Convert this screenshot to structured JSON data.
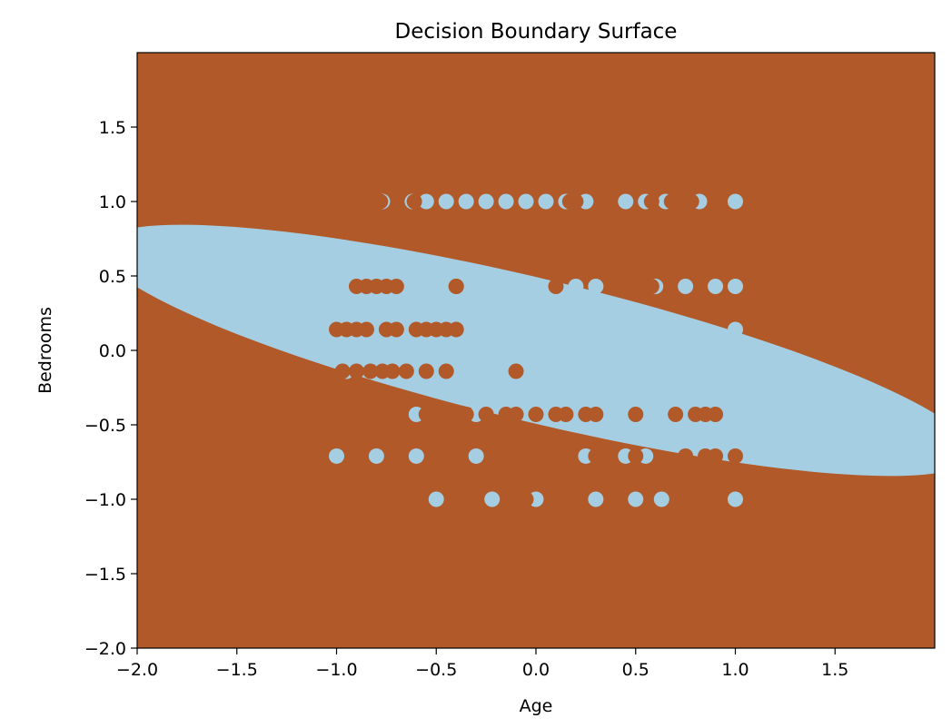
{
  "chart_data": {
    "type": "scatter",
    "title": "Decision Boundary Surface",
    "xlabel": "Age",
    "ylabel": "Bedrooms",
    "xlim": [
      -2.0,
      2.0
    ],
    "ylim": [
      -2.0,
      2.0
    ],
    "x_ticks": [
      "−2.0",
      "−1.5",
      "−1.0",
      "−0.5",
      "0.0",
      "0.5",
      "1.0",
      "1.5"
    ],
    "x_tick_values": [
      -2.0,
      -1.5,
      -1.0,
      -0.5,
      0.0,
      0.5,
      1.0,
      1.5
    ],
    "y_ticks": [
      "−2.0",
      "−1.5",
      "−1.0",
      "−0.5",
      "0.0",
      "0.5",
      "1.0",
      "1.5"
    ],
    "y_tick_values": [
      -2.0,
      -1.5,
      -1.0,
      -0.5,
      0.0,
      0.5,
      1.0,
      1.5
    ],
    "grid": false,
    "colors": {
      "class_0": "#b15928",
      "class_1": "#a6cee3"
    },
    "decision_region": {
      "shape": "ellipse",
      "inside_class": "class_1",
      "outside_class": "class_0",
      "center": [
        0.0,
        0.0
      ],
      "semi_axes": [
        2.25,
        0.48
      ],
      "rotation_deg": -13.5
    },
    "series": [
      {
        "class": "class_1",
        "points": [
          [
            -0.77,
            1.0
          ],
          [
            -0.62,
            1.0
          ],
          [
            -0.55,
            1.0
          ],
          [
            -0.45,
            1.0
          ],
          [
            -0.35,
            1.0
          ],
          [
            -0.25,
            1.0
          ],
          [
            -0.15,
            1.0
          ],
          [
            -0.05,
            1.0
          ],
          [
            0.05,
            1.0
          ],
          [
            0.15,
            1.0
          ],
          [
            0.25,
            1.0
          ],
          [
            0.45,
            1.0
          ],
          [
            0.55,
            1.0
          ],
          [
            0.65,
            1.0
          ],
          [
            0.82,
            1.0
          ],
          [
            1.0,
            1.0
          ],
          [
            0.3,
            0.43
          ],
          [
            0.6,
            0.43
          ],
          [
            0.75,
            0.43
          ],
          [
            0.9,
            0.43
          ],
          [
            1.0,
            0.43
          ],
          [
            -0.98,
            0.43
          ],
          [
            -0.6,
            0.43
          ],
          [
            -0.4,
            0.43
          ],
          [
            -0.2,
            0.43
          ],
          [
            0.0,
            0.43
          ],
          [
            0.2,
            0.43
          ],
          [
            -0.95,
            0.14
          ],
          [
            -0.7,
            0.14
          ],
          [
            -0.45,
            0.14
          ],
          [
            -0.2,
            0.14
          ],
          [
            0.1,
            0.14
          ],
          [
            0.4,
            0.14
          ],
          [
            0.7,
            0.14
          ],
          [
            1.0,
            0.14
          ],
          [
            -0.95,
            -0.14
          ],
          [
            -0.7,
            -0.14
          ],
          [
            -0.4,
            -0.14
          ],
          [
            -0.1,
            -0.14
          ],
          [
            0.2,
            -0.14
          ],
          [
            0.5,
            -0.14
          ],
          [
            0.8,
            -0.14
          ],
          [
            1.0,
            -0.14
          ],
          [
            -0.6,
            -0.43
          ],
          [
            -0.3,
            -0.43
          ],
          [
            0.0,
            -0.43
          ],
          [
            0.3,
            -0.43
          ],
          [
            0.6,
            -0.43
          ],
          [
            0.85,
            -0.43
          ],
          [
            1.0,
            -0.43
          ],
          [
            -1.0,
            -0.71
          ],
          [
            -0.8,
            -0.71
          ],
          [
            -0.6,
            -0.71
          ],
          [
            -0.3,
            -0.71
          ],
          [
            0.25,
            -0.71
          ],
          [
            0.45,
            -0.71
          ],
          [
            0.55,
            -0.71
          ],
          [
            -0.5,
            -1.0
          ],
          [
            -0.22,
            -1.0
          ],
          [
            0.0,
            -1.0
          ],
          [
            0.3,
            -1.0
          ],
          [
            0.5,
            -1.0
          ],
          [
            0.63,
            -1.0
          ],
          [
            1.0,
            -1.0
          ]
        ]
      },
      {
        "class": "class_0",
        "points": [
          [
            -0.78,
            1.0
          ],
          [
            -0.61,
            1.0
          ],
          [
            0.17,
            1.0
          ],
          [
            0.2,
            1.0
          ],
          [
            0.58,
            1.0
          ],
          [
            0.68,
            1.0
          ],
          [
            0.78,
            1.0
          ],
          [
            -0.9,
            0.43
          ],
          [
            -0.85,
            0.43
          ],
          [
            -0.8,
            0.43
          ],
          [
            -0.75,
            0.43
          ],
          [
            -0.7,
            0.43
          ],
          [
            -0.4,
            0.43
          ],
          [
            -0.4,
            0.43
          ],
          [
            0.1,
            0.43
          ],
          [
            0.55,
            0.43
          ],
          [
            0.58,
            0.43
          ],
          [
            -1.0,
            0.14
          ],
          [
            -0.95,
            0.14
          ],
          [
            -0.9,
            0.14
          ],
          [
            -0.85,
            0.14
          ],
          [
            -0.75,
            0.14
          ],
          [
            -0.7,
            0.14
          ],
          [
            -0.6,
            0.14
          ],
          [
            -0.55,
            0.14
          ],
          [
            -0.5,
            0.14
          ],
          [
            -0.45,
            0.14
          ],
          [
            -0.4,
            0.14
          ],
          [
            -0.97,
            -0.14
          ],
          [
            -0.9,
            -0.14
          ],
          [
            -0.83,
            -0.14
          ],
          [
            -0.77,
            -0.14
          ],
          [
            -0.72,
            -0.14
          ],
          [
            -0.65,
            -0.14
          ],
          [
            -0.55,
            -0.14
          ],
          [
            -0.45,
            -0.14
          ],
          [
            -0.1,
            -0.14
          ],
          [
            -0.85,
            -0.43
          ],
          [
            -0.77,
            -0.43
          ],
          [
            -0.7,
            -0.43
          ],
          [
            -0.55,
            -0.43
          ],
          [
            -0.5,
            -0.43
          ],
          [
            -0.4,
            -0.43
          ],
          [
            -0.35,
            -0.43
          ],
          [
            -0.25,
            -0.43
          ],
          [
            -0.15,
            -0.43
          ],
          [
            -0.1,
            -0.43
          ],
          [
            0.0,
            -0.43
          ],
          [
            0.1,
            -0.43
          ],
          [
            0.15,
            -0.43
          ],
          [
            0.25,
            -0.43
          ],
          [
            0.3,
            -0.43
          ],
          [
            0.5,
            -0.43
          ],
          [
            0.7,
            -0.43
          ],
          [
            0.8,
            -0.43
          ],
          [
            0.85,
            -0.43
          ],
          [
            0.9,
            -0.43
          ],
          [
            -0.15,
            -0.71
          ],
          [
            -0.1,
            -0.71
          ],
          [
            0.0,
            -0.71
          ],
          [
            0.1,
            -0.71
          ],
          [
            0.3,
            -0.71
          ],
          [
            0.5,
            -0.71
          ],
          [
            0.75,
            -0.71
          ],
          [
            0.85,
            -0.71
          ],
          [
            0.9,
            -0.71
          ],
          [
            1.0,
            -0.71
          ],
          [
            -0.6,
            -1.0
          ],
          [
            -0.38,
            -1.0
          ],
          [
            -0.1,
            -1.0
          ],
          [
            -0.05,
            -1.0
          ]
        ]
      }
    ]
  }
}
